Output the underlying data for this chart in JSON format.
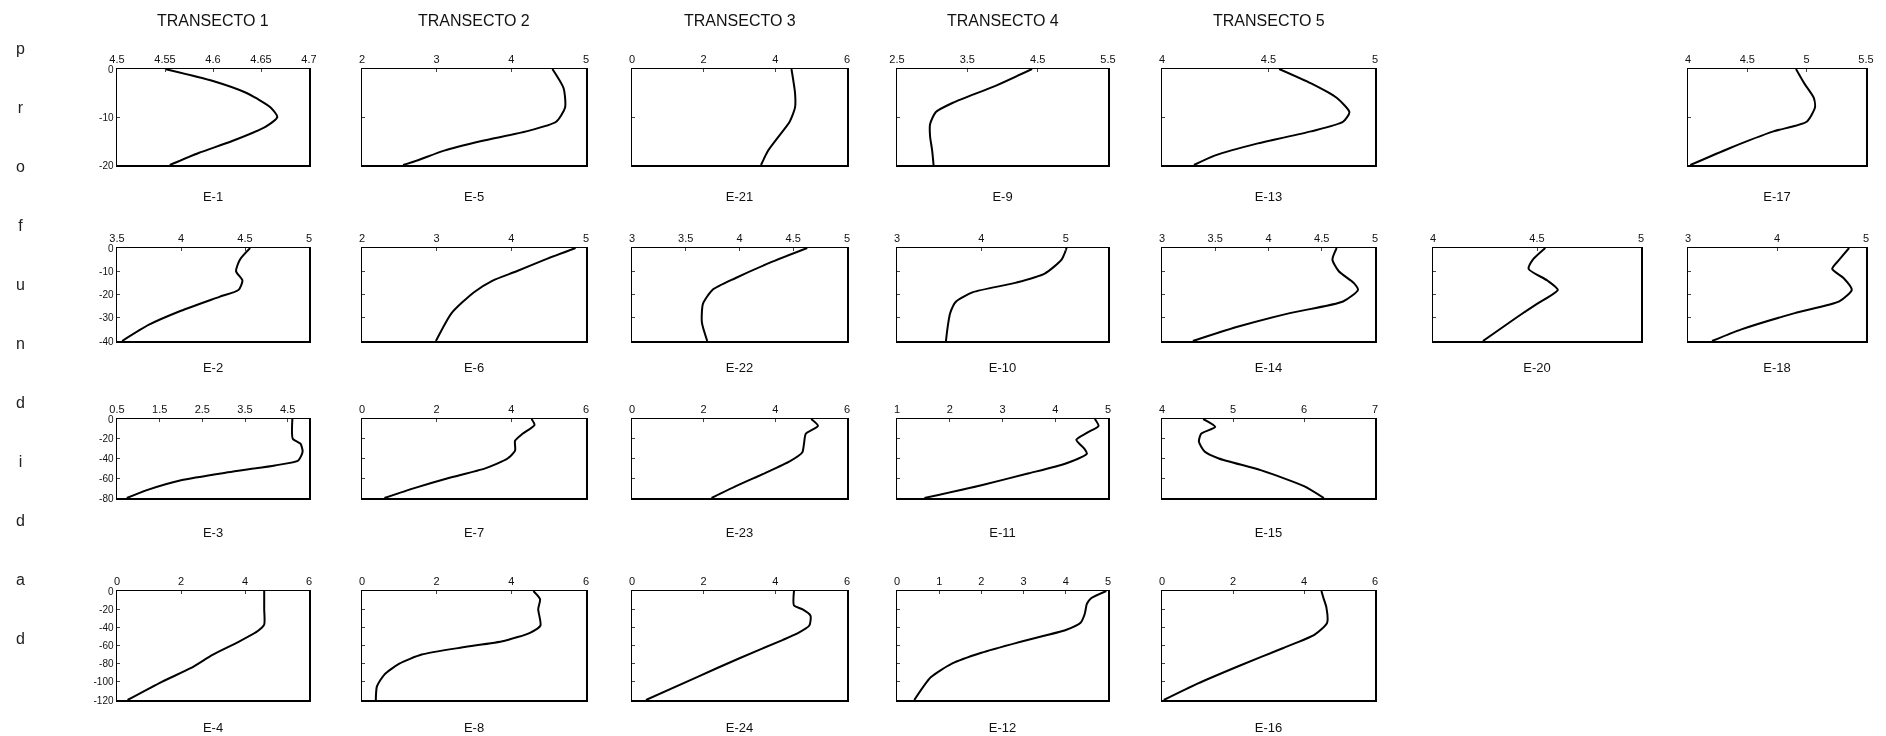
{
  "chart_data": [
    {
      "type": "line",
      "title": "E-1",
      "ylabel": "profundidad",
      "annotations": [
        "TRANSECTO 1"
      ],
      "xlim": [
        4.5,
        4.7
      ],
      "xticks": [
        4.5,
        4.55,
        4.6,
        4.65,
        4.7
      ],
      "ylim": [
        -20,
        0
      ],
      "yticks": [
        0,
        -10,
        -20
      ],
      "x": [
        4.55,
        4.6,
        4.635,
        4.66,
        4.667,
        4.655,
        4.62,
        4.585,
        4.555
      ],
      "series": [
        {
          "color": "#000000",
          "values": [
            0,
            -2.5,
            -5,
            -8,
            -10,
            -12,
            -15,
            -17.5,
            -20
          ]
        }
      ]
    },
    {
      "type": "line",
      "title": "E-5",
      "annotations": [
        "TRANSECTO 2"
      ],
      "tick_labels": "x",
      "xlim": [
        2,
        5
      ],
      "xticks": [
        2,
        3,
        4,
        5
      ],
      "ylim": [
        -20,
        0
      ],
      "yticks": [
        0,
        -10,
        -20
      ],
      "x": [
        4.55,
        4.7,
        4.72,
        4.6,
        4.2,
        3.6,
        3.1,
        2.75,
        2.55
      ],
      "series": [
        {
          "color": "#000000",
          "values": [
            0,
            -4,
            -8,
            -11,
            -13,
            -15,
            -17,
            -19,
            -20
          ]
        }
      ]
    },
    {
      "type": "line",
      "title": "E-21",
      "annotations": [
        "TRANSECTO 3"
      ],
      "tick_labels": "x",
      "xlim": [
        0,
        6
      ],
      "xticks": [
        0,
        2,
        4,
        6
      ],
      "ylim": [
        -20,
        0
      ],
      "yticks": [
        0,
        -10,
        -20
      ],
      "x": [
        4.45,
        4.55,
        4.55,
        4.4,
        4.1,
        3.8,
        3.6
      ],
      "series": [
        {
          "color": "#000000",
          "values": [
            0,
            -5,
            -8,
            -11,
            -14,
            -17,
            -20
          ]
        }
      ]
    },
    {
      "type": "line",
      "title": "E-9",
      "annotations": [
        "TRANSECTO 4"
      ],
      "tick_labels": "x",
      "xlim": [
        2.5,
        5.5
      ],
      "xticks": [
        2.5,
        3.5,
        4.5,
        5.5
      ],
      "ylim": [
        -20,
        0
      ],
      "yticks": [
        0,
        -10,
        -20
      ],
      "x": [
        4.42,
        3.9,
        3.3,
        3.05,
        2.97,
        2.97,
        3.0,
        3.02
      ],
      "series": [
        {
          "color": "#000000",
          "values": [
            0,
            -3.5,
            -7,
            -9,
            -11.5,
            -14,
            -17,
            -20
          ]
        }
      ]
    },
    {
      "type": "line",
      "title": "E-13",
      "annotations": [
        "TRANSECTO 5"
      ],
      "tick_labels": "x",
      "xlim": [
        4,
        5
      ],
      "xticks": [
        4,
        4.5,
        5
      ],
      "ylim": [
        -20,
        0
      ],
      "yticks": [
        0,
        -10,
        -20
      ],
      "x": [
        4.55,
        4.7,
        4.82,
        4.88,
        4.85,
        4.7,
        4.45,
        4.25,
        4.15
      ],
      "series": [
        {
          "color": "#000000",
          "values": [
            0,
            -3,
            -6,
            -9,
            -11,
            -13,
            -15.5,
            -18,
            -20
          ]
        }
      ]
    },
    {
      "type": "line",
      "title": "E-17",
      "tick_labels": "x",
      "xlim": [
        4,
        5.5
      ],
      "xticks": [
        4,
        4.5,
        5,
        5.5
      ],
      "ylim": [
        -20,
        0
      ],
      "yticks": [
        0,
        -10,
        -20
      ],
      "x": [
        4.91,
        4.98,
        5.06,
        5.07,
        5.0,
        4.72,
        4.35,
        4.02
      ],
      "series": [
        {
          "color": "#000000",
          "values": [
            0,
            -3,
            -6,
            -8,
            -11,
            -13,
            -16.5,
            -20
          ]
        }
      ]
    },
    {
      "type": "line",
      "title": "E-2",
      "xlim": [
        3.5,
        5
      ],
      "xticks": [
        3.5,
        4,
        4.5,
        5
      ],
      "ylim": [
        -40,
        0
      ],
      "yticks": [
        0,
        -10,
        -20,
        -30,
        -40
      ],
      "x": [
        4.54,
        4.46,
        4.43,
        4.48,
        4.45,
        4.3,
        4.0,
        3.75,
        3.54
      ],
      "series": [
        {
          "color": "#000000",
          "values": [
            0,
            -5,
            -10,
            -14,
            -18,
            -21,
            -27,
            -33,
            -40
          ]
        }
      ]
    },
    {
      "type": "line",
      "title": "E-6",
      "tick_labels": "x",
      "xlim": [
        2,
        5
      ],
      "xticks": [
        2,
        3,
        4,
        5
      ],
      "ylim": [
        -40,
        0
      ],
      "yticks": [
        0,
        -10,
        -20,
        -30,
        -40
      ],
      "x": [
        4.86,
        4.45,
        4.07,
        3.75,
        3.5,
        3.2,
        2.99
      ],
      "series": [
        {
          "color": "#000000",
          "values": [
            0,
            -5,
            -10,
            -14,
            -19,
            -28,
            -40
          ]
        }
      ]
    },
    {
      "type": "line",
      "title": "E-22",
      "tick_labels": "x",
      "xlim": [
        3,
        5
      ],
      "xticks": [
        3,
        3.5,
        4,
        4.5,
        5
      ],
      "ylim": [
        -40,
        0
      ],
      "yticks": [
        0,
        -10,
        -20,
        -30,
        -40
      ],
      "x": [
        4.63,
        4.3,
        3.96,
        3.75,
        3.66,
        3.65,
        3.7
      ],
      "series": [
        {
          "color": "#000000",
          "values": [
            0,
            -6,
            -13,
            -18,
            -24,
            -32,
            -40
          ]
        }
      ]
    },
    {
      "type": "line",
      "title": "E-10",
      "tick_labels": "x",
      "xlim": [
        3,
        5.5
      ],
      "xticks": [
        3,
        4,
        5
      ],
      "ylim": [
        -40,
        0
      ],
      "yticks": [
        0,
        -10,
        -20,
        -30,
        -40
      ],
      "x": [
        5.01,
        4.95,
        4.75,
        4.4,
        3.9,
        3.7,
        3.63,
        3.6,
        3.58
      ],
      "series": [
        {
          "color": "#000000",
          "values": [
            0,
            -5,
            -11,
            -15,
            -19,
            -23,
            -28,
            -34,
            -40
          ]
        }
      ]
    },
    {
      "type": "line",
      "title": "E-14",
      "tick_labels": "x",
      "xlim": [
        3,
        5
      ],
      "xticks": [
        3,
        3.5,
        4,
        4.5,
        5
      ],
      "ylim": [
        -40,
        0
      ],
      "yticks": [
        0,
        -10,
        -20,
        -30,
        -40
      ],
      "x": [
        4.64,
        4.6,
        4.66,
        4.8,
        4.84,
        4.7,
        4.2,
        3.7,
        3.29
      ],
      "series": [
        {
          "color": "#000000",
          "values": [
            0,
            -5,
            -10,
            -15,
            -18,
            -23,
            -28,
            -34,
            -40
          ]
        }
      ]
    },
    {
      "type": "line",
      "title": "E-20",
      "tick_labels": "x",
      "xlim": [
        4,
        5
      ],
      "xticks": [
        4,
        4.5,
        5
      ],
      "ylim": [
        -40,
        0
      ],
      "yticks": [
        0,
        -10,
        -20,
        -30,
        -40
      ],
      "x": [
        4.54,
        4.48,
        4.46,
        4.55,
        4.6,
        4.5,
        4.4,
        4.24
      ],
      "series": [
        {
          "color": "#000000",
          "values": [
            0,
            -5,
            -9,
            -14,
            -18,
            -24,
            -30,
            -40
          ]
        }
      ]
    },
    {
      "type": "line",
      "title": "E-18",
      "tick_labels": "x",
      "xlim": [
        3,
        5
      ],
      "xticks": [
        3,
        4,
        5
      ],
      "ylim": [
        -40,
        0
      ],
      "yticks": [
        0,
        -10,
        -20,
        -30,
        -40
      ],
      "x": [
        4.81,
        4.7,
        4.62,
        4.75,
        4.84,
        4.7,
        4.2,
        3.6,
        3.27
      ],
      "series": [
        {
          "color": "#000000",
          "values": [
            0,
            -5,
            -9,
            -13,
            -18,
            -23,
            -28,
            -35,
            -40
          ]
        }
      ]
    },
    {
      "type": "line",
      "title": "E-3",
      "xlim": [
        0.5,
        5
      ],
      "xticks": [
        0.5,
        1.5,
        2.5,
        3.5,
        4.5
      ],
      "ylim": [
        -80,
        0
      ],
      "yticks": [
        0,
        -20,
        -40,
        -60,
        -80
      ],
      "x": [
        4.61,
        4.62,
        4.8,
        4.85,
        4.75,
        4.2,
        3.1,
        2.0,
        1.2,
        0.73
      ],
      "series": [
        {
          "color": "#000000",
          "values": [
            0,
            -20,
            -25,
            -33,
            -42,
            -47,
            -54,
            -62,
            -72,
            -80
          ]
        }
      ]
    },
    {
      "type": "line",
      "title": "E-7",
      "tick_labels": "x",
      "xlim": [
        0,
        6
      ],
      "xticks": [
        0,
        2,
        4,
        6
      ],
      "ylim": [
        -80,
        0
      ],
      "yticks": [
        0,
        -20,
        -40,
        -60,
        -80
      ],
      "x": [
        4.54,
        4.62,
        4.3,
        4.1,
        4.1,
        3.9,
        3.3,
        2.3,
        1.4,
        0.6
      ],
      "series": [
        {
          "color": "#000000",
          "values": [
            0,
            -6,
            -15,
            -22,
            -32,
            -40,
            -50,
            -60,
            -70,
            -80
          ]
        }
      ]
    },
    {
      "type": "line",
      "title": "E-23",
      "tick_labels": "x",
      "xlim": [
        0,
        6
      ],
      "xticks": [
        0,
        2,
        4,
        6
      ],
      "ylim": [
        -80,
        0
      ],
      "yticks": [
        0,
        -20,
        -40,
        -60,
        -80
      ],
      "x": [
        5.0,
        5.19,
        4.85,
        4.8,
        4.75,
        4.4,
        3.7,
        2.9,
        2.22
      ],
      "series": [
        {
          "color": "#000000",
          "values": [
            0,
            -7,
            -15,
            -25,
            -34,
            -43,
            -55,
            -68,
            -80
          ]
        }
      ]
    },
    {
      "type": "line",
      "title": "E-11",
      "tick_labels": "x",
      "xlim": [
        1,
        5
      ],
      "xticks": [
        1,
        2,
        3,
        4,
        5
      ],
      "ylim": [
        -80,
        0
      ],
      "yticks": [
        0,
        -20,
        -40,
        -60,
        -80
      ],
      "x": [
        4.75,
        4.82,
        4.6,
        4.4,
        4.55,
        4.6,
        4.2,
        3.5,
        2.6,
        1.52
      ],
      "series": [
        {
          "color": "#000000",
          "values": [
            0,
            -7,
            -14,
            -21,
            -30,
            -35,
            -45,
            -55,
            -67,
            -80
          ]
        }
      ]
    },
    {
      "type": "line",
      "title": "E-15",
      "tick_labels": "x",
      "xlim": [
        4,
        7
      ],
      "xticks": [
        4,
        5,
        6,
        7
      ],
      "ylim": [
        -80,
        0
      ],
      "yticks": [
        0,
        -20,
        -40,
        -60,
        -80
      ],
      "x": [
        4.58,
        4.75,
        4.55,
        4.52,
        4.6,
        4.8,
        5.4,
        6.0,
        6.28
      ],
      "series": [
        {
          "color": "#000000",
          "values": [
            0,
            -8,
            -15,
            -23,
            -33,
            -40,
            -52,
            -68,
            -80
          ]
        }
      ]
    },
    {
      "type": "line",
      "title": "E-4",
      "xlim": [
        0,
        6
      ],
      "xticks": [
        0,
        2,
        4,
        6
      ],
      "ylim": [
        -120,
        0
      ],
      "yticks": [
        0,
        -20,
        -40,
        -60,
        -80,
        -100,
        -120
      ],
      "x": [
        4.6,
        4.6,
        4.6,
        4.4,
        3.8,
        3.0,
        2.3,
        1.4,
        0.33
      ],
      "series": [
        {
          "color": "#000000",
          "values": [
            0,
            -20,
            -37,
            -44,
            -56,
            -70,
            -85,
            -100,
            -120
          ]
        }
      ]
    },
    {
      "type": "line",
      "title": "E-8",
      "tick_labels": "x",
      "xlim": [
        0,
        6
      ],
      "xticks": [
        0,
        2,
        4,
        6
      ],
      "ylim": [
        -120,
        0
      ],
      "yticks": [
        0,
        -20,
        -40,
        -60,
        -80,
        -100,
        -120
      ],
      "x": [
        4.59,
        4.77,
        4.72,
        4.78,
        4.5,
        3.8,
        2.7,
        1.6,
        1.0,
        0.6,
        0.4,
        0.37
      ],
      "series": [
        {
          "color": "#000000",
          "values": [
            0,
            -9,
            -20,
            -38,
            -46,
            -55,
            -62,
            -70,
            -80,
            -92,
            -105,
            -120
          ]
        }
      ]
    },
    {
      "type": "line",
      "title": "E-24",
      "tick_labels": "x",
      "xlim": [
        0,
        6
      ],
      "xticks": [
        0,
        2,
        4,
        6
      ],
      "ylim": [
        -120,
        0
      ],
      "yticks": [
        0,
        -20,
        -40,
        -60,
        -80,
        -100,
        -120
      ],
      "x": [
        4.52,
        4.52,
        4.75,
        4.98,
        4.95,
        4.6,
        4.2,
        3.0,
        1.8,
        0.39
      ],
      "series": [
        {
          "color": "#000000",
          "values": [
            0,
            -16,
            -20,
            -27,
            -38,
            -47,
            -54,
            -74,
            -95,
            -120
          ]
        }
      ]
    },
    {
      "type": "line",
      "title": "E-12",
      "tick_labels": "x",
      "xlim": [
        0,
        5
      ],
      "xticks": [
        0,
        1,
        2,
        3,
        4,
        5
      ],
      "ylim": [
        -120,
        0
      ],
      "yticks": [
        0,
        -20,
        -40,
        -60,
        -80,
        -100,
        -120
      ],
      "x": [
        4.96,
        4.6,
        4.5,
        4.45,
        4.35,
        4.0,
        3.0,
        2.0,
        1.3,
        0.8,
        0.41
      ],
      "series": [
        {
          "color": "#000000",
          "values": [
            0,
            -8,
            -14,
            -25,
            -35,
            -43,
            -55,
            -68,
            -80,
            -95,
            -120
          ]
        }
      ]
    },
    {
      "type": "line",
      "title": "E-16",
      "tick_labels": "x",
      "xlim": [
        0,
        6
      ],
      "xticks": [
        0,
        2,
        4,
        6
      ],
      "ylim": [
        -120,
        0
      ],
      "yticks": [
        0,
        -20,
        -40,
        -60,
        -80,
        -100,
        -120
      ],
      "x": [
        4.49,
        4.55,
        4.63,
        4.65,
        4.3,
        3.4,
        2.2,
        1.0,
        0.05
      ],
      "series": [
        {
          "color": "#000000",
          "values": [
            0,
            -8,
            -18,
            -35,
            -48,
            -63,
            -82,
            -102,
            -120
          ]
        }
      ]
    }
  ]
}
